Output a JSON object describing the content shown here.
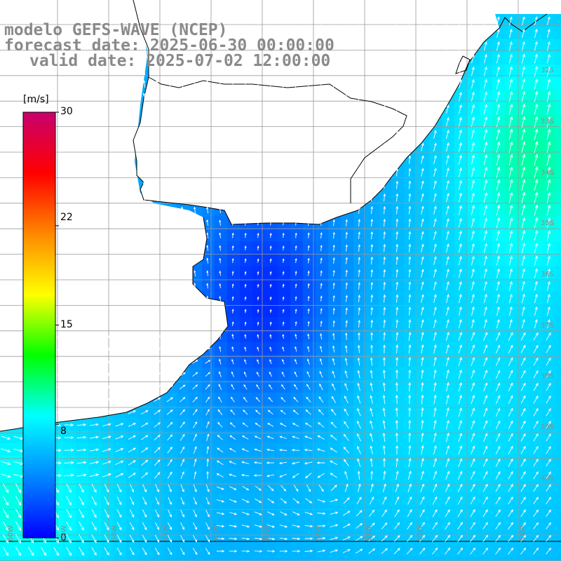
{
  "header": {
    "line1": "modelo GEFS-WAVE (NCEP)",
    "line2": "forecast date: 2025-06-30 00:00:00",
    "line3": "valid date: 2025-07-02 12:00:00"
  },
  "colorbar": {
    "unit": "[m/s]",
    "ticks": [
      "30",
      "22",
      "15",
      "8",
      "0"
    ],
    "tick_values": [
      30,
      22,
      15,
      8,
      0
    ],
    "vmin": 0,
    "vmax": 30,
    "colors": [
      "#0000ff",
      "#0088ff",
      "#00ffff",
      "#00ff00",
      "#ffff00",
      "#ff8800",
      "#ff0000",
      "#c8006e"
    ]
  },
  "map": {
    "lat_labels": [
      "32S",
      "33S",
      "34S",
      "35S",
      "36S",
      "37S",
      "38S",
      "39S",
      "40S"
    ],
    "lon_labels": [
      "60W",
      "59W",
      "58W",
      "57W",
      "56W",
      "55W",
      "54W",
      "53W",
      "52W",
      "51W"
    ],
    "land_color": "#ffffff",
    "grid_color": "#9a9a9a",
    "coast_color": "#000000",
    "arrow_color": "#ffffff"
  }
}
